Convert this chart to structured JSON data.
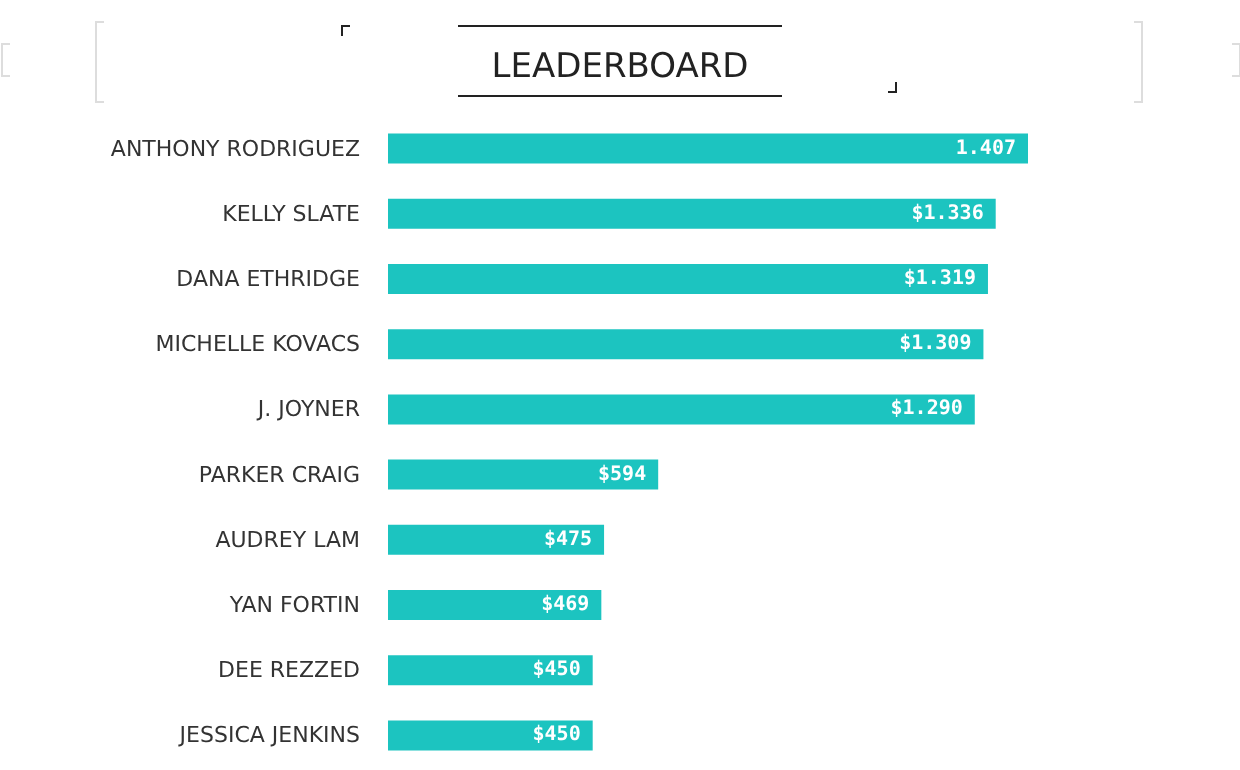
{
  "chart_data": {
    "type": "bar",
    "title": "LEADERBOARD",
    "orientation": "horizontal",
    "categories": [
      "ANTHONY RODRIGUEZ",
      "KELLY SLATE",
      "DANA ETHRIDGE",
      "MICHELLE KOVACS",
      "J. JOYNER",
      "PARKER CRAIG",
      "AUDREY LAM",
      "YAN FORTIN",
      "DEE REZZED",
      "JESSICA JENKINS"
    ],
    "values": [
      1407,
      1336,
      1319,
      1309,
      1290,
      594,
      475,
      469,
      450,
      450
    ],
    "value_labels": [
      "1.407",
      "$1.336",
      "$1.319",
      "$1.309",
      "$1.290",
      "$594",
      "$475",
      "$469",
      "$450",
      "$450"
    ],
    "color": "#1cc4c0",
    "grid": false
  }
}
